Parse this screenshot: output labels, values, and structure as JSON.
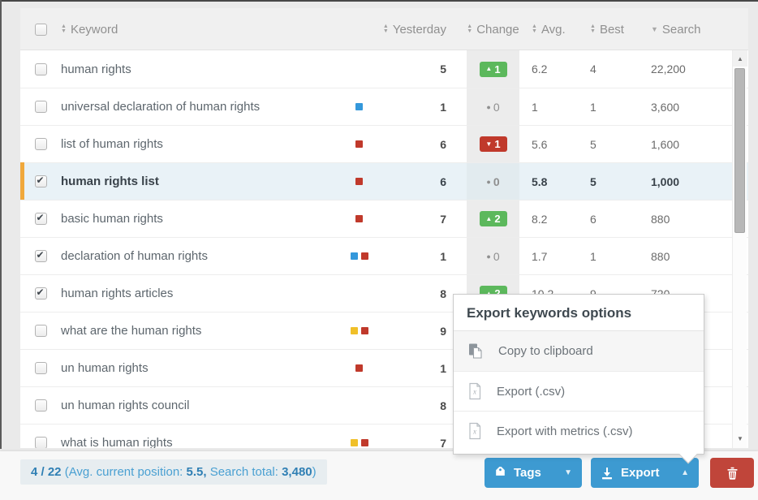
{
  "header": {
    "columns": [
      {
        "label": "Keyword",
        "sort": "both"
      },
      {
        "label": "Yesterday",
        "sort": "both"
      },
      {
        "label": "Change",
        "sort": "both"
      },
      {
        "label": "Avg.",
        "sort": "both"
      },
      {
        "label": "Best",
        "sort": "both"
      },
      {
        "label": "Search",
        "sort": "desc"
      }
    ]
  },
  "table": {
    "rows": [
      {
        "keyword": "human rights",
        "checked": false,
        "selected": false,
        "tags": [],
        "yesterday": "5",
        "change": "1",
        "change_dir": "up",
        "avg": "6.2",
        "best": "4",
        "search": "22,200"
      },
      {
        "keyword": "universal declaration of human rights",
        "checked": false,
        "selected": false,
        "tags": [
          "blue"
        ],
        "yesterday": "1",
        "change": "0",
        "change_dir": "none",
        "avg": "1",
        "best": "1",
        "search": "3,600"
      },
      {
        "keyword": "list of human rights",
        "checked": false,
        "selected": false,
        "tags": [
          "red"
        ],
        "yesterday": "6",
        "change": "1",
        "change_dir": "down",
        "avg": "5.6",
        "best": "5",
        "search": "1,600"
      },
      {
        "keyword": "human rights list",
        "checked": true,
        "selected": true,
        "tags": [
          "red"
        ],
        "yesterday": "6",
        "change": "0",
        "change_dir": "none",
        "avg": "5.8",
        "best": "5",
        "search": "1,000"
      },
      {
        "keyword": "basic human rights",
        "checked": true,
        "selected": false,
        "tags": [
          "red"
        ],
        "yesterday": "7",
        "change": "2",
        "change_dir": "up",
        "avg": "8.2",
        "best": "6",
        "search": "880"
      },
      {
        "keyword": "declaration of human rights",
        "checked": true,
        "selected": false,
        "tags": [
          "blue",
          "red"
        ],
        "yesterday": "1",
        "change": "0",
        "change_dir": "none",
        "avg": "1.7",
        "best": "1",
        "search": "880"
      },
      {
        "keyword": "human rights articles",
        "checked": true,
        "selected": false,
        "tags": [],
        "yesterday": "8",
        "change": "2",
        "change_dir": "up",
        "avg": "10.2",
        "best": "9",
        "search": "720"
      },
      {
        "keyword": "what are the human rights",
        "checked": false,
        "selected": false,
        "tags": [
          "yellow",
          "red"
        ],
        "yesterday": "9",
        "change": "",
        "change_dir": "hidden",
        "avg": "",
        "best": "",
        "search": ""
      },
      {
        "keyword": "un human rights",
        "checked": false,
        "selected": false,
        "tags": [
          "red"
        ],
        "yesterday": "1",
        "change": "",
        "change_dir": "hidden",
        "avg": "",
        "best": "",
        "search": ""
      },
      {
        "keyword": "un human rights council",
        "checked": false,
        "selected": false,
        "tags": [],
        "yesterday": "8",
        "change": "",
        "change_dir": "hidden",
        "avg": "",
        "best": "",
        "search": ""
      },
      {
        "keyword": "what is human rights",
        "checked": false,
        "selected": false,
        "tags": [
          "yellow",
          "red"
        ],
        "yesterday": "7",
        "change": "",
        "change_dir": "hidden",
        "avg": "",
        "best": "",
        "search": ""
      }
    ]
  },
  "popup": {
    "title": "Export keywords options",
    "items": [
      {
        "icon": "copy-icon",
        "label": "Copy to clipboard"
      },
      {
        "icon": "csv-file-icon",
        "label": "Export (.csv)"
      },
      {
        "icon": "csv-file-icon",
        "label": "Export with metrics (.csv)"
      }
    ]
  },
  "footer": {
    "status_segments": [
      {
        "text": "4 / 22",
        "bold": true
      },
      {
        "text": " (Avg. current position: ",
        "bold": false
      },
      {
        "text": "5.5,",
        "bold": true
      },
      {
        "text": "  Search total: ",
        "bold": false
      },
      {
        "text": "3,480",
        "bold": true
      },
      {
        "text": ")",
        "bold": false
      }
    ],
    "buttons": {
      "tags": "Tags",
      "export": "Export"
    }
  },
  "colors": {
    "accent_blue": "#3d9ad1",
    "positive_green": "#5cb85c",
    "negative_red": "#c0392b",
    "selected_orange": "#f0a83c",
    "selected_row_bg": "#e9f2f7",
    "tag_blue": "#3498db",
    "tag_red": "#c0392b",
    "tag_yellow": "#f0c029",
    "danger_red": "#c0453a",
    "status_text_blue": "#4aa0d2"
  }
}
